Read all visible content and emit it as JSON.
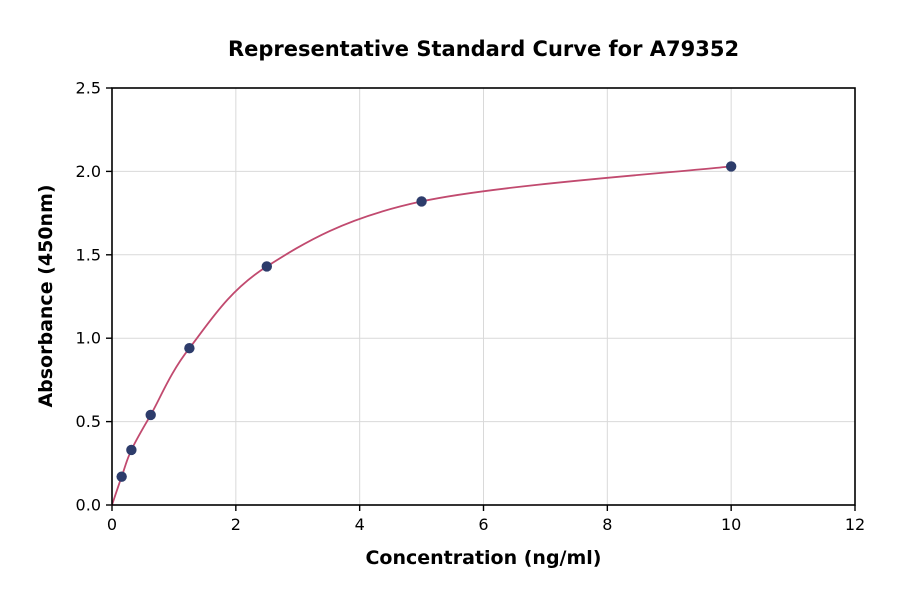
{
  "chart_data": {
    "type": "scatter",
    "title": "Representative Standard Curve for A79352",
    "xlabel": "Concentration (ng/ml)",
    "ylabel": "Absorbance (450nm)",
    "xlim": [
      0,
      12
    ],
    "ylim": [
      0,
      2.5
    ],
    "xtick_values": [
      0,
      2,
      4,
      6,
      8,
      10,
      12
    ],
    "xtick_labels": [
      "0",
      "2",
      "4",
      "6",
      "8",
      "10",
      "12"
    ],
    "ytick_values": [
      0,
      0.5,
      1.0,
      1.5,
      2.0,
      2.5
    ],
    "ytick_labels": [
      "0.0",
      "0.5",
      "1.0",
      "1.5",
      "2.0",
      "2.5"
    ],
    "grid": true,
    "legend": "none",
    "points": {
      "x": [
        0.156,
        0.313,
        0.625,
        1.25,
        2.5,
        5,
        10
      ],
      "y": [
        0.17,
        0.33,
        0.54,
        0.94,
        1.43,
        1.82,
        2.03
      ]
    },
    "curve_anchor": {
      "x": 0,
      "y": 0
    },
    "colors": {
      "point": "#2d3c6b",
      "line": "#c14a6f",
      "grid": "#d9d9d9",
      "axis": "#000000",
      "background": "#ffffff"
    }
  }
}
